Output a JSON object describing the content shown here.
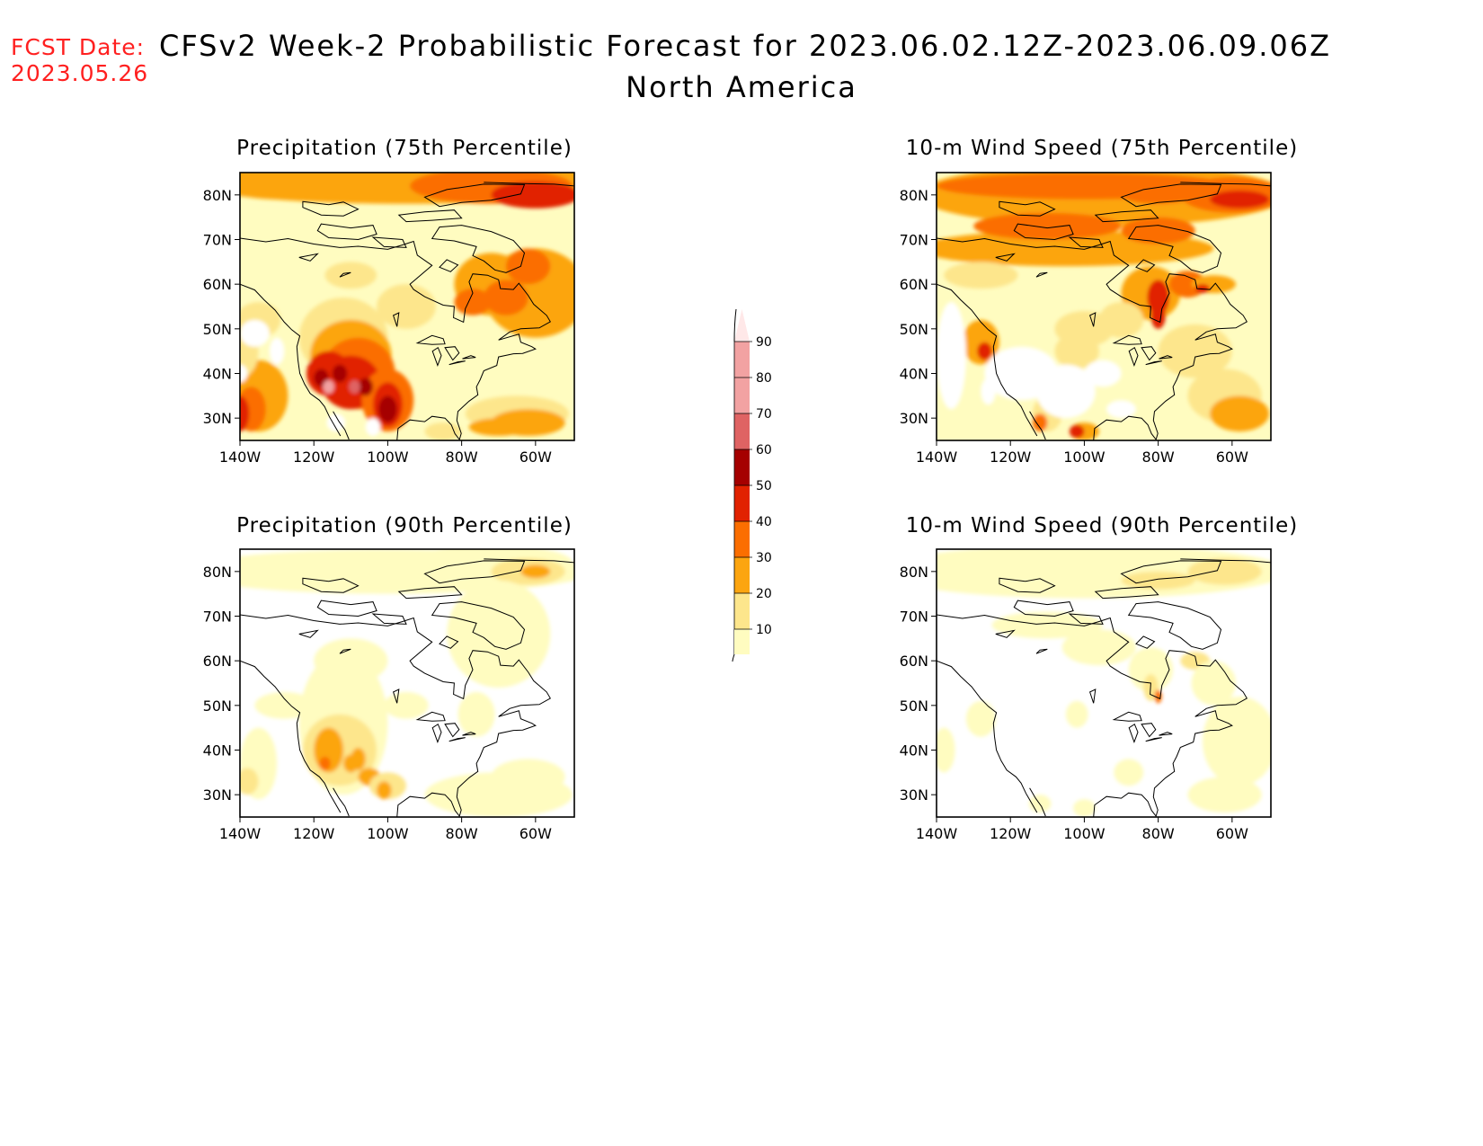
{
  "header": {
    "fcst_label": "FCST Date:",
    "fcst_date": "2023.05.26",
    "title": "CFSv2 Week-2 Probabilistic Forecast for 2023.06.02.12Z-2023.06.09.06Z",
    "subtitle": "North America"
  },
  "panels": [
    {
      "id": "precip75",
      "title": "Precipitation (75th Percentile)"
    },
    {
      "id": "wind75",
      "title": "10-m Wind Speed (75th Percentile)"
    },
    {
      "id": "precip90",
      "title": "Precipitation (90th Percentile)"
    },
    {
      "id": "wind90",
      "title": "10-m Wind Speed (90th Percentile)"
    }
  ],
  "axes": {
    "lat_labels": [
      "80N",
      "70N",
      "60N",
      "50N",
      "40N",
      "30N"
    ],
    "lon_labels": [
      "140W",
      "120W",
      "100W",
      "80W",
      "60W"
    ]
  },
  "colorbar": {
    "levels": [
      "10",
      "20",
      "30",
      "40",
      "50",
      "60",
      "70",
      "80",
      "90"
    ],
    "colors": [
      "#fffcc0",
      "#fde68c",
      "#fca510",
      "#fb6e00",
      "#e12200",
      "#a50000",
      "#df6363",
      "#f2a2a2",
      "#ffe8e8"
    ]
  }
}
